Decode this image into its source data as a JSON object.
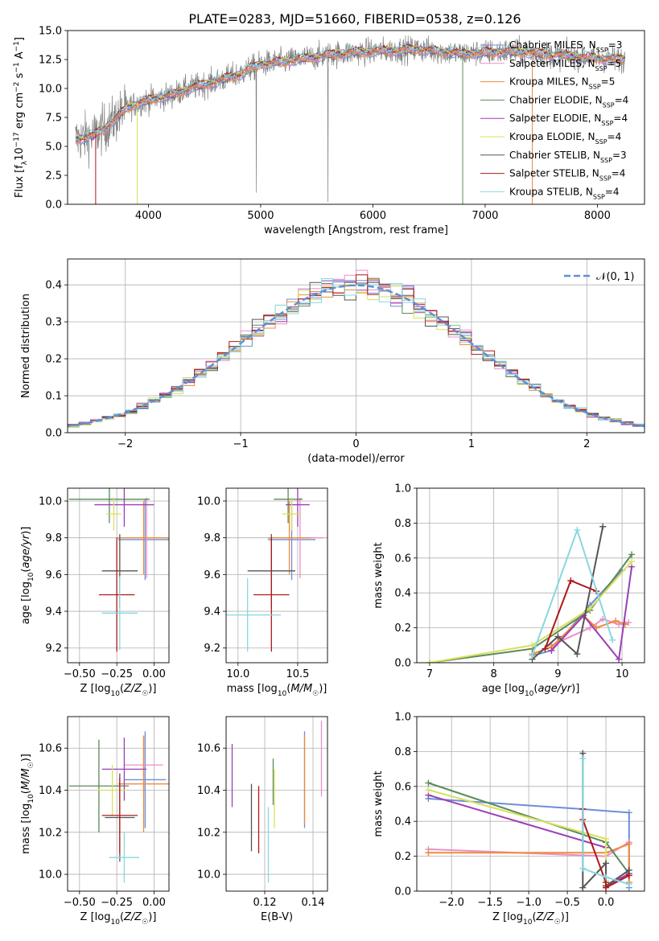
{
  "figure": {
    "title": "PLATE=0283, MJD=51660, FIBERID=0538, z=0.126"
  },
  "models": [
    {
      "label": "Chabrier MILES, N$_{SSP}$=3",
      "text": "Chabrier MILES, N",
      "sub": "SSP",
      "val": "=3",
      "color": "#6b8fd6"
    },
    {
      "label": "Salpeter MILES, N$_{SSP}$=5",
      "text": "Salpeter MILES, N",
      "sub": "SSP",
      "val": "=5",
      "color": "#e88fc7"
    },
    {
      "label": "Kroupa MILES, N$_{SSP}$=5",
      "text": "Kroupa MILES, N",
      "sub": "SSP",
      "val": "=5",
      "color": "#f08a3c"
    },
    {
      "label": "Chabrier ELODIE, N$_{SSP}$=4",
      "text": "Chabrier ELODIE, N",
      "sub": "SSP",
      "val": "=4",
      "color": "#5a8a5a"
    },
    {
      "label": "Salpeter ELODIE, N$_{SSP}$=4",
      "text": "Salpeter ELODIE, N",
      "sub": "SSP",
      "val": "=4",
      "color": "#9b3fb5"
    },
    {
      "label": "Kroupa ELODIE, N$_{SSP}$=4",
      "text": "Kroupa ELODIE, N",
      "sub": "SSP",
      "val": "=4",
      "color": "#d8e05a"
    },
    {
      "label": "Chabrier STELIB, N$_{SSP}$=3",
      "text": "Chabrier STELIB, N",
      "sub": "SSP",
      "val": "=3",
      "color": "#555555"
    },
    {
      "label": "Salpeter STELIB, N$_{SSP}$=4",
      "text": "Salpeter STELIB, N",
      "sub": "SSP",
      "val": "=4",
      "color": "#b01818"
    },
    {
      "label": "Kroupa STELIB, N$_{SSP}$=4",
      "text": "Kroupa STELIB, N",
      "sub": "SSP",
      "val": "=4",
      "color": "#86d8e0"
    }
  ],
  "chart_data": [
    {
      "id": "spectrum",
      "type": "line",
      "title": "PLATE=0283, MJD=51660, FIBERID=0538, z=0.126",
      "xlabel": "wavelength [Angstrom, rest frame]",
      "ylabel": "Flux [f_λ 10^-17 erg cm^-2 s^-1 A^-1]",
      "xlim": [
        3280,
        8420
      ],
      "ylim": [
        0,
        15
      ],
      "xticks": [
        "4000",
        "5000",
        "6000",
        "7000",
        "8000"
      ],
      "yticks": [
        "0.0",
        "2.5",
        "5.0",
        "7.5",
        "10.0",
        "12.5",
        "15.0"
      ],
      "continuum": {
        "x": [
          3350,
          3500,
          3600,
          3700,
          3800,
          3900,
          4000,
          4100,
          4200,
          4300,
          4400,
          4600,
          4800,
          5000,
          5200,
          5400,
          5600,
          5800,
          6000,
          6200,
          6400,
          6600,
          6800,
          7000,
          7200,
          7400,
          7600,
          7800,
          8000,
          8200
        ],
        "y": [
          5.6,
          5.9,
          6.5,
          7.3,
          8.3,
          8.7,
          9.0,
          9.2,
          9.4,
          9.8,
          10.1,
          10.6,
          11.2,
          12.1,
          12.3,
          12.6,
          12.9,
          13.1,
          13.2,
          13.3,
          13.4,
          13.2,
          13.0,
          13.1,
          13.2,
          13.1,
          12.9,
          12.8,
          12.6,
          12.5
        ]
      },
      "observed_noise_amplitude": 1.6,
      "grid": false,
      "legend": "right"
    },
    {
      "id": "residuals",
      "type": "histogram",
      "xlabel": "(data-model)/error",
      "ylabel": "Normed distribution",
      "xlim": [
        -2.5,
        2.5
      ],
      "ylim": [
        0,
        0.47
      ],
      "xticks": [
        "−2",
        "−1",
        "0",
        "1",
        "2"
      ],
      "yticks": [
        "0.0",
        "0.1",
        "0.2",
        "0.3",
        "0.4"
      ],
      "bin_width": 0.1,
      "reference_label": "𝒩(0, 1)",
      "reference": {
        "type": "normal",
        "mean": 0,
        "sigma": 1
      },
      "grid": true,
      "legend": "top-right"
    },
    {
      "id": "age-vs-Z",
      "type": "errorbar",
      "xlabel": "Z [log10(Z/Z☉)]",
      "ylabel": "age [log10(age/yr)]",
      "xlim": [
        -0.58,
        0.1
      ],
      "ylim": [
        9.12,
        10.07
      ],
      "xticks": [
        "−0.50",
        "−0.25",
        "0.00"
      ],
      "yticks": [
        "9.2",
        "9.4",
        "9.6",
        "9.8",
        "10.0"
      ],
      "points": [
        {
          "model": 0,
          "x": -0.06,
          "xerr": 0.18,
          "y": 9.79,
          "yerr": 0.22
        },
        {
          "model": 1,
          "x": -0.05,
          "xerr": 0.2,
          "y": 9.8,
          "yerr": 0.22
        },
        {
          "model": 2,
          "x": -0.07,
          "xerr": 0.18,
          "y": 9.8,
          "yerr": 0.2
        },
        {
          "model": 3,
          "x": -0.3,
          "xerr": 0.27,
          "y": 10.01,
          "yerr": 0.13
        },
        {
          "model": 4,
          "x": -0.2,
          "xerr": 0.2,
          "y": 9.98,
          "yerr": 0.12
        },
        {
          "model": 5,
          "x": -0.27,
          "xerr": 0.05,
          "y": 9.93,
          "yerr": 0.09
        },
        {
          "model": 6,
          "x": -0.23,
          "xerr": 0.12,
          "y": 9.62,
          "yerr": 0.2
        },
        {
          "model": 7,
          "x": -0.25,
          "xerr": 0.12,
          "y": 9.49,
          "yerr": 0.31
        },
        {
          "model": 8,
          "x": -0.23,
          "xerr": 0.12,
          "y": 9.39,
          "yerr": 0.2
        }
      ]
    },
    {
      "id": "age-vs-mass",
      "type": "errorbar",
      "xlabel": "mass [log10(M/M☉)]",
      "ylabel": "",
      "xlim": [
        9.9,
        10.75
      ],
      "ylim": [
        9.12,
        10.07
      ],
      "xticks": [
        "10.0",
        "10.5"
      ],
      "yticks": [
        "9.2",
        "9.4",
        "9.6",
        "9.8",
        "10.0"
      ],
      "points": [
        {
          "model": 0,
          "x": 10.45,
          "xerr": 0.2,
          "y": 9.79,
          "yerr": 0.22
        },
        {
          "model": 1,
          "x": 10.52,
          "xerr": 0.2,
          "y": 9.8,
          "yerr": 0.22
        },
        {
          "model": 2,
          "x": 10.43,
          "xerr": 0.18,
          "y": 9.8,
          "yerr": 0.2
        },
        {
          "model": 3,
          "x": 10.42,
          "xerr": 0.12,
          "y": 10.01,
          "yerr": 0.13
        },
        {
          "model": 4,
          "x": 10.5,
          "xerr": 0.1,
          "y": 9.98,
          "yerr": 0.12
        },
        {
          "model": 5,
          "x": 10.45,
          "xerr": 0.08,
          "y": 9.93,
          "yerr": 0.09
        },
        {
          "model": 6,
          "x": 10.28,
          "xerr": 0.2,
          "y": 9.62,
          "yerr": 0.2
        },
        {
          "model": 7,
          "x": 10.28,
          "xerr": 0.15,
          "y": 9.49,
          "yerr": 0.31
        },
        {
          "model": 8,
          "x": 10.08,
          "xerr": 0.28,
          "y": 9.38,
          "yerr": 0.2
        }
      ]
    },
    {
      "id": "mass-vs-Z",
      "type": "errorbar",
      "xlabel": "Z [log10(Z/Z☉)]",
      "ylabel": "mass [log10(M/M☉)]",
      "xlim": [
        -0.58,
        0.1
      ],
      "ylim": [
        9.92,
        10.75
      ],
      "xticks": [
        "−0.50",
        "−0.25",
        "0.00"
      ],
      "yticks": [
        "10.0",
        "10.2",
        "10.4",
        "10.6"
      ],
      "points": [
        {
          "model": 0,
          "x": -0.06,
          "xerr": 0.14,
          "y": 10.45,
          "yerr": 0.23
        },
        {
          "model": 1,
          "x": -0.07,
          "xerr": 0.13,
          "y": 10.52,
          "yerr": 0.13
        },
        {
          "model": 2,
          "x": -0.07,
          "xerr": 0.17,
          "y": 10.43,
          "yerr": 0.23
        },
        {
          "model": 3,
          "x": -0.37,
          "xerr": 0.2,
          "y": 10.42,
          "yerr": 0.22
        },
        {
          "model": 4,
          "x": -0.2,
          "xerr": 0.15,
          "y": 10.5,
          "yerr": 0.15
        },
        {
          "model": 5,
          "x": -0.28,
          "xerr": 0.1,
          "y": 10.4,
          "yerr": 0.12
        },
        {
          "model": 6,
          "x": -0.23,
          "xerr": 0.1,
          "y": 10.27,
          "yerr": 0.21
        },
        {
          "model": 7,
          "x": -0.23,
          "xerr": 0.12,
          "y": 10.28,
          "yerr": 0.18
        },
        {
          "model": 8,
          "x": -0.2,
          "xerr": 0.1,
          "y": 10.08,
          "yerr": 0.12
        }
      ]
    },
    {
      "id": "mass-vs-EBV",
      "type": "errorbar",
      "xlabel": "E(B-V)",
      "ylabel": "",
      "xlim": [
        0.104,
        0.146
      ],
      "ylim": [
        9.92,
        10.75
      ],
      "xticks": [
        "0.12",
        "0.14"
      ],
      "yticks": [
        "10.0",
        "10.2",
        "10.4",
        "10.6"
      ],
      "points": [
        {
          "model": 0,
          "x": 0.1365,
          "yerr": 0.23,
          "y": 10.45
        },
        {
          "model": 1,
          "x": 0.1435,
          "yerr": 0.18,
          "y": 10.55
        },
        {
          "model": 2,
          "x": 0.1365,
          "yerr": 0.21,
          "y": 10.45
        },
        {
          "model": 3,
          "x": 0.1235,
          "yerr": 0.11,
          "y": 10.44
        },
        {
          "model": 4,
          "x": 0.1065,
          "yerr": 0.15,
          "y": 10.47
        },
        {
          "model": 5,
          "x": 0.124,
          "yerr": 0.14,
          "y": 10.36
        },
        {
          "model": 6,
          "x": 0.1145,
          "yerr": 0.16,
          "y": 10.27
        },
        {
          "model": 7,
          "x": 0.1175,
          "yerr": 0.16,
          "y": 10.26
        },
        {
          "model": 8,
          "x": 0.1215,
          "yerr": 0.18,
          "y": 10.14
        }
      ]
    },
    {
      "id": "weight-vs-age",
      "type": "line",
      "xlabel": "age [log10(age/yr)]",
      "ylabel": "mass weight",
      "xlim": [
        6.8,
        10.35
      ],
      "ylim": [
        0,
        1.0
      ],
      "xticks": [
        "7",
        "8",
        "9",
        "10"
      ],
      "yticks": [
        "0.0",
        "0.2",
        "0.4",
        "0.6",
        "0.8",
        "1.0"
      ],
      "series": [
        {
          "model": 0,
          "x": [
            8.6,
            8.9,
            9.5,
            10.0
          ],
          "y": [
            0.04,
            0.07,
            0.33,
            0.53
          ]
        },
        {
          "model": 1,
          "x": [
            8.9,
            9.5,
            9.7,
            9.95,
            10.1
          ],
          "y": [
            0.1,
            0.2,
            0.25,
            0.22,
            0.23
          ]
        },
        {
          "model": 2,
          "x": [
            8.6,
            8.9,
            9.4,
            9.6,
            9.9,
            10.05
          ],
          "y": [
            0.05,
            0.09,
            0.27,
            0.2,
            0.24,
            0.22
          ]
        },
        {
          "model": 3,
          "x": [
            7.0,
            8.6,
            9.5,
            10.15
          ],
          "y": [
            0.0,
            0.08,
            0.3,
            0.62
          ]
        },
        {
          "model": 4,
          "x": [
            8.9,
            9.4,
            9.95,
            10.15
          ],
          "y": [
            0.07,
            0.27,
            0.02,
            0.55
          ]
        },
        {
          "model": 5,
          "x": [
            7.0,
            8.6,
            9.5,
            10.15
          ],
          "y": [
            0.0,
            0.1,
            0.31,
            0.58
          ]
        },
        {
          "model": 6,
          "x": [
            8.6,
            9.0,
            9.3,
            9.7
          ],
          "y": [
            0.02,
            0.15,
            0.05,
            0.78
          ]
        },
        {
          "model": 7,
          "x": [
            8.8,
            9.2,
            9.6
          ],
          "y": [
            0.08,
            0.47,
            0.41
          ]
        },
        {
          "model": 8,
          "x": [
            8.6,
            9.3,
            9.85
          ],
          "y": [
            0.04,
            0.76,
            0.13
          ]
        }
      ]
    },
    {
      "id": "weight-vs-Z",
      "type": "line",
      "xlabel": "Z [log10(Z/Z☉)]",
      "ylabel": "mass weight",
      "xlim": [
        -2.45,
        0.5
      ],
      "ylim": [
        0,
        1.0
      ],
      "xticks": [
        "−2.0",
        "−1.5",
        "−1.0",
        "−0.5",
        "0.0"
      ],
      "yticks": [
        "0.0",
        "0.2",
        "0.4",
        "0.6",
        "0.8",
        "1.0"
      ],
      "series": [
        {
          "model": 0,
          "x": [
            -2.3,
            -0.3,
            0.3,
            0.3
          ],
          "y": [
            0.53,
            0.47,
            0.45,
            0.02
          ]
        },
        {
          "model": 1,
          "x": [
            -2.3,
            0.0,
            0.3,
            0.3
          ],
          "y": [
            0.24,
            0.2,
            0.28,
            0.05
          ]
        },
        {
          "model": 2,
          "x": [
            -2.3,
            0.0,
            0.3,
            0.3
          ],
          "y": [
            0.22,
            0.22,
            0.27,
            0.05
          ]
        },
        {
          "model": 3,
          "x": [
            -2.3,
            0.0,
            0.3
          ],
          "y": [
            0.62,
            0.28,
            0.1
          ]
        },
        {
          "model": 4,
          "x": [
            -2.3,
            0.0,
            0.0,
            0.3
          ],
          "y": [
            0.55,
            0.25,
            0.03,
            0.1
          ]
        },
        {
          "model": 5,
          "x": [
            -2.3,
            0.0,
            0.0
          ],
          "y": [
            0.58,
            0.3,
            0.06
          ]
        },
        {
          "model": 6,
          "x": [
            -0.3,
            -0.3,
            0.0,
            0.0,
            0.3
          ],
          "y": [
            0.79,
            0.02,
            0.16,
            0.03,
            0.12
          ]
        },
        {
          "model": 7,
          "x": [
            -0.3,
            -0.3,
            0.0,
            0.0,
            0.3
          ],
          "y": [
            0.47,
            0.41,
            0.05,
            0.02,
            0.09
          ]
        },
        {
          "model": 8,
          "x": [
            -0.3,
            -0.3,
            0.0,
            0.3
          ],
          "y": [
            0.76,
            0.13,
            0.08,
            0.04
          ]
        }
      ]
    }
  ]
}
